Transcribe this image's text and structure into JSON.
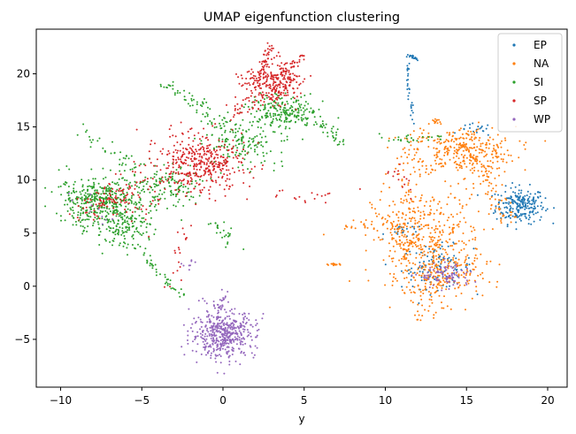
{
  "chart_data": {
    "type": "scatter",
    "title": "UMAP eigenfunction clustering",
    "xlabel": "y",
    "ylabel": "",
    "xlim": [
      -11.5,
      21.2
    ],
    "ylim": [
      -9.5,
      24.2
    ],
    "xticks": [
      -10,
      -5,
      0,
      5,
      10,
      15,
      20
    ],
    "yticks": [
      -5,
      0,
      5,
      10,
      15,
      20
    ],
    "legend_position": "top-right",
    "series": [
      {
        "name": "EP",
        "color": "#1f77b4",
        "clusters": [
          {
            "shape": "blob",
            "cx": 18.3,
            "cy": 7.6,
            "sx": 0.75,
            "sy": 0.85,
            "n": 230
          },
          {
            "shape": "blob",
            "cx": 13.2,
            "cy": 1.8,
            "sx": 1.1,
            "sy": 1.0,
            "n": 110
          },
          {
            "shape": "line",
            "from": [
              11.2,
              21.9
            ],
            "to": [
              12.0,
              21.4
            ],
            "spread": 0.08,
            "n": 18
          },
          {
            "shape": "line",
            "from": [
              11.4,
              21.0
            ],
            "to": [
              11.4,
              17.6
            ],
            "spread": 0.06,
            "n": 20
          },
          {
            "shape": "line",
            "from": [
              11.6,
              17.3
            ],
            "to": [
              11.7,
              15.1
            ],
            "spread": 0.06,
            "n": 10
          },
          {
            "shape": "blob",
            "cx": 15.6,
            "cy": 14.7,
            "sx": 0.5,
            "sy": 0.3,
            "n": 20
          },
          {
            "shape": "blob",
            "cx": 11.2,
            "cy": 5.2,
            "sx": 0.6,
            "sy": 0.3,
            "n": 25
          }
        ]
      },
      {
        "name": "NA",
        "color": "#ff7f0e",
        "clusters": [
          {
            "shape": "blob",
            "cx": 14.8,
            "cy": 12.8,
            "sx": 1.6,
            "sy": 1.1,
            "n": 300
          },
          {
            "shape": "blob",
            "cx": 12.6,
            "cy": 4.5,
            "sx": 1.7,
            "sy": 2.3,
            "n": 380
          },
          {
            "shape": "blob",
            "cx": 13.6,
            "cy": 0.8,
            "sx": 1.2,
            "sy": 1.2,
            "n": 160
          },
          {
            "shape": "line",
            "from": [
              12.0,
              14.5
            ],
            "to": [
              11.0,
              3.0
            ],
            "spread": 0.5,
            "n": 80
          },
          {
            "shape": "line",
            "from": [
              15.5,
              13.0
            ],
            "to": [
              17.5,
              6.0
            ],
            "spread": 0.5,
            "n": 90
          },
          {
            "shape": "line",
            "from": [
              10.5,
              6.0
            ],
            "to": [
              12.5,
              -3.0
            ],
            "spread": 0.4,
            "n": 70
          },
          {
            "shape": "line",
            "from": [
              7.2,
              2.0
            ],
            "to": [
              6.4,
              2.1
            ],
            "spread": 0.05,
            "n": 14
          },
          {
            "shape": "line",
            "from": [
              7.5,
              5.5
            ],
            "to": [
              10.5,
              6.5
            ],
            "spread": 0.3,
            "n": 25
          },
          {
            "shape": "line",
            "from": [
              12.8,
              15.4
            ],
            "to": [
              13.7,
              15.6
            ],
            "spread": 0.1,
            "n": 12
          }
        ]
      },
      {
        "name": "SI",
        "color": "#2ca02c",
        "clusters": [
          {
            "shape": "blob",
            "cx": -7.5,
            "cy": 8.0,
            "sx": 1.3,
            "sy": 1.2,
            "n": 420
          },
          {
            "shape": "blob",
            "cx": -6.0,
            "cy": 5.5,
            "sx": 0.9,
            "sy": 0.9,
            "n": 140
          },
          {
            "shape": "blob",
            "cx": -3.5,
            "cy": 9.5,
            "sx": 1.2,
            "sy": 1.0,
            "n": 140
          },
          {
            "shape": "blob",
            "cx": 3.8,
            "cy": 16.3,
            "sx": 1.0,
            "sy": 0.8,
            "n": 220
          },
          {
            "shape": "blob",
            "cx": 1.5,
            "cy": 13.5,
            "sx": 1.4,
            "sy": 1.2,
            "n": 130
          },
          {
            "shape": "line",
            "from": [
              -5.0,
              3.0
            ],
            "to": [
              -2.5,
              -1.0
            ],
            "spread": 0.15,
            "n": 40
          },
          {
            "shape": "line",
            "from": [
              -1.5,
              17.5
            ],
            "to": [
              1.5,
              13.0
            ],
            "spread": 0.4,
            "n": 60
          },
          {
            "shape": "line",
            "from": [
              -3.8,
              19.2
            ],
            "to": [
              -1.5,
              17.0
            ],
            "spread": 0.3,
            "n": 30
          },
          {
            "shape": "line",
            "from": [
              6.0,
              15.5
            ],
            "to": [
              7.5,
              13.0
            ],
            "spread": 0.2,
            "n": 30
          },
          {
            "shape": "line",
            "from": [
              -8.5,
              14.5
            ],
            "to": [
              -5.5,
              11.5
            ],
            "spread": 0.4,
            "n": 30
          },
          {
            "shape": "line",
            "from": [
              9.5,
              14.0
            ],
            "to": [
              13.5,
              14.0
            ],
            "spread": 0.2,
            "n": 25
          },
          {
            "shape": "line",
            "from": [
              -0.5,
              6.0
            ],
            "to": [
              0.5,
              4.0
            ],
            "spread": 0.3,
            "n": 25
          }
        ]
      },
      {
        "name": "SP",
        "color": "#d62728",
        "clusters": [
          {
            "shape": "blob",
            "cx": -1.5,
            "cy": 11.5,
            "sx": 1.4,
            "sy": 1.3,
            "n": 420
          },
          {
            "shape": "blob",
            "cx": 3.0,
            "cy": 19.2,
            "sx": 0.9,
            "sy": 1.0,
            "n": 280
          },
          {
            "shape": "blob",
            "cx": -6.5,
            "cy": 7.8,
            "sx": 1.3,
            "sy": 0.8,
            "n": 70
          },
          {
            "shape": "line",
            "from": [
              2.5,
              20.0
            ],
            "to": [
              2.9,
              23.0
            ],
            "spread": 0.15,
            "n": 35
          },
          {
            "shape": "line",
            "from": [
              3.5,
              20.0
            ],
            "to": [
              5.0,
              21.8
            ],
            "spread": 0.15,
            "n": 30
          },
          {
            "shape": "line",
            "from": [
              -4.5,
              11.0
            ],
            "to": [
              -9.0,
              6.5
            ],
            "spread": 0.5,
            "n": 50
          },
          {
            "shape": "line",
            "from": [
              -2.5,
              6.0
            ],
            "to": [
              -3.0,
              0.5
            ],
            "spread": 0.4,
            "n": 20
          },
          {
            "shape": "line",
            "from": [
              0.5,
              15.5
            ],
            "to": [
              2.0,
              18.0
            ],
            "spread": 0.5,
            "n": 25
          },
          {
            "shape": "line",
            "from": [
              10.5,
              11.0
            ],
            "to": [
              11.5,
              8.5
            ],
            "spread": 0.4,
            "n": 15
          },
          {
            "shape": "line",
            "from": [
              3.0,
              8.5
            ],
            "to": [
              8.0,
              8.5
            ],
            "spread": 0.3,
            "n": 18
          }
        ]
      },
      {
        "name": "WP",
        "color": "#9467bd",
        "clusters": [
          {
            "shape": "blob",
            "cx": 0.0,
            "cy": -4.5,
            "sx": 1.0,
            "sy": 1.1,
            "n": 480
          },
          {
            "shape": "blob",
            "cx": 13.8,
            "cy": 1.0,
            "sx": 0.8,
            "sy": 0.6,
            "n": 90
          },
          {
            "shape": "line",
            "from": [
              0.3,
              -0.2
            ],
            "to": [
              -0.4,
              -2.2
            ],
            "spread": 0.15,
            "n": 20
          },
          {
            "shape": "line",
            "from": [
              -3.0,
              1.5
            ],
            "to": [
              -1.5,
              2.5
            ],
            "spread": 0.3,
            "n": 8
          },
          {
            "shape": "line",
            "from": [
              -7.0,
              6.0
            ],
            "to": [
              -9.0,
              8.5
            ],
            "spread": 0.4,
            "n": 10
          }
        ]
      }
    ]
  }
}
